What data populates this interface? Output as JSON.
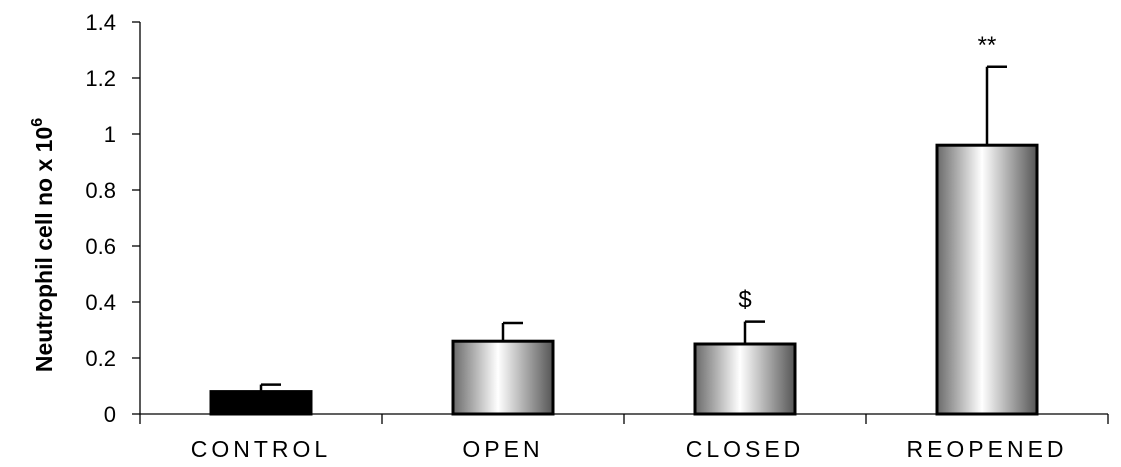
{
  "chart_data": {
    "type": "bar",
    "categories": [
      "CONTROL",
      "OPEN",
      "CLOSED",
      "REOPENED"
    ],
    "values": [
      0.08,
      0.26,
      0.25,
      0.96
    ],
    "errors": [
      0.025,
      0.065,
      0.08,
      0.28
    ],
    "annotations": [
      "",
      "",
      "$",
      "**"
    ],
    "bar_styles": [
      "solid",
      "gradient",
      "gradient",
      "gradient"
    ],
    "ylabel_main": "Neutrophil cell no x 10",
    "ylabel_sup": "6",
    "ylim": [
      0,
      1.4
    ],
    "yticks": [
      0,
      0.2,
      0.4,
      0.6,
      0.8,
      1,
      1.2,
      1.4
    ],
    "ytick_labels": [
      "0",
      "0.2",
      "0.4",
      "0.6",
      "0.8",
      "1",
      "1.2",
      "1.4"
    ],
    "grid": false,
    "colors": {
      "solid": "#000000",
      "gradient_dark": "#555555",
      "gradient_light": "#ffffff"
    }
  }
}
